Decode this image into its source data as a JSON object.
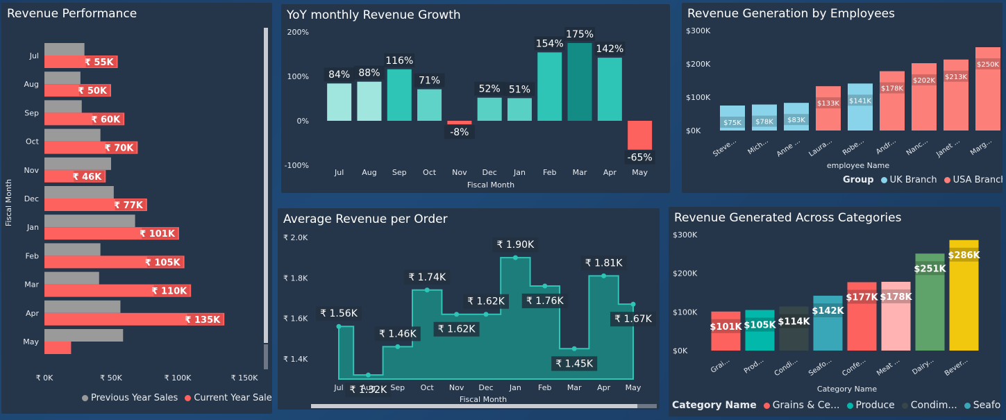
{
  "colors": {
    "prev": "#9a9a9a",
    "curr": "#fd625e",
    "teal_light": "#a0e6df",
    "teal_mid": "#2ec4b6",
    "teal_dark": "#128c84",
    "negative": "#fd625e",
    "uk": "#8ad4eb",
    "usa": "#fd7f7a"
  },
  "revenue_performance": {
    "title": "Revenue Performance",
    "legend": [
      "Previous Year Sales",
      "Current Year  Sales"
    ]
  },
  "yoy": {
    "title": "YoY monthly Revenue Growth"
  },
  "employees": {
    "title": "Revenue Generation by Employees",
    "legend_title": "Group",
    "legend": [
      "UK Branch",
      "USA Branch"
    ]
  },
  "avg_order": {
    "title": "Average Revenue per Order"
  },
  "categories": {
    "title": "Revenue Generated Across Categories",
    "legend_title": "Category Name",
    "legend": [
      "Grains & Ce...",
      "Produce",
      "Condim...",
      "Seafood"
    ]
  },
  "chart_data": [
    {
      "type": "bar",
      "orientation": "horizontal",
      "title": "Revenue Performance",
      "ylabel": "Fiscal Month",
      "categories": [
        "Jul",
        "Aug",
        "Sep",
        "Oct",
        "Nov",
        "Dec",
        "Jan",
        "Feb",
        "Mar",
        "Apr",
        "May"
      ],
      "series": [
        {
          "name": "Previous Year Sales",
          "values": [
            30,
            27,
            28,
            42,
            50,
            52,
            68,
            42,
            41,
            57,
            59
          ]
        },
        {
          "name": "Current Year  Sales",
          "values": [
            55,
            50,
            60,
            70,
            46,
            77,
            101,
            105,
            110,
            135,
            20
          ]
        }
      ],
      "data_labels": [
        "₹ 55K",
        "₹ 50K",
        "₹ 60K",
        "₹ 70K",
        "₹ 46K",
        "₹ 77K",
        "₹ 101K",
        "₹ 105K",
        "₹ 110K",
        "₹ 135K",
        ""
      ],
      "xticks": [
        "₹ 0K",
        "₹ 50K",
        "₹ 100K",
        "₹ 150K"
      ],
      "xlim": [
        0,
        150
      ]
    },
    {
      "type": "bar",
      "title": "YoY monthly Revenue Growth",
      "xlabel": "Fiscal Month",
      "categories": [
        "Jul",
        "Aug",
        "Sep",
        "Oct",
        "Nov",
        "Dec",
        "Jan",
        "Feb",
        "Mar",
        "Apr",
        "May"
      ],
      "values": [
        84,
        88,
        116,
        71,
        -8,
        52,
        51,
        154,
        175,
        142,
        -65
      ],
      "data_labels": [
        "84%",
        "88%",
        "116%",
        "71%",
        "-8%",
        "52%",
        "51%",
        "154%",
        "175%",
        "142%",
        "-65%"
      ],
      "yticks": [
        "200%",
        "100%",
        "0%",
        "-100%"
      ],
      "ylim": [
        -100,
        200
      ]
    },
    {
      "type": "bar",
      "title": "Revenue Generation by Employees",
      "xlabel": "employee Name",
      "categories": [
        "Steve...",
        "Mich...",
        "Anne ...",
        "Laura...",
        "Robe...",
        "Andr...",
        "Nanc...",
        "Janet ...",
        "Marg..."
      ],
      "values": [
        75,
        78,
        83,
        133,
        141,
        178,
        202,
        213,
        250
      ],
      "groups": [
        "UK Branch",
        "UK Branch",
        "UK Branch",
        "USA Branch",
        "UK Branch",
        "USA Branch",
        "USA Branch",
        "USA Branch",
        "USA Branch"
      ],
      "data_labels": [
        "$75K",
        "$78K",
        "$83K",
        "$133K",
        "$141K",
        "$178K",
        "$202K",
        "$213K",
        "$250K"
      ],
      "yticks": [
        "$300K",
        "$200K",
        "$100K",
        "$0K"
      ],
      "ylim": [
        0,
        300
      ]
    },
    {
      "type": "area",
      "title": "Average Revenue per Order",
      "xlabel": "Fiscal Month",
      "categories": [
        "Jul",
        "Aug",
        "Sep",
        "Oct",
        "Nov",
        "Dec",
        "Jan",
        "Feb",
        "Mar",
        "Apr",
        "May"
      ],
      "values": [
        1.56,
        1.32,
        1.46,
        1.74,
        1.62,
        1.62,
        1.9,
        1.76,
        1.45,
        1.81,
        1.67
      ],
      "data_labels": [
        "₹ 1.56K",
        "₹ 1.32K",
        "₹ 1.46K",
        "₹ 1.74K",
        "₹ 1.62K",
        "₹ 1.62K",
        "₹ 1.90K",
        "₹ 1.76K",
        "₹ 1.45K",
        "₹ 1.81K",
        "₹ 1.67K"
      ],
      "yticks": [
        "₹ 2.0K",
        "₹ 1.8K",
        "₹ 1.6K",
        "₹ 1.4K"
      ],
      "ylim": [
        1.3,
        2.0
      ]
    },
    {
      "type": "bar",
      "title": "Revenue Generated Across Categories",
      "xlabel": "Category Name",
      "categories": [
        "Grai...",
        "Prod...",
        "Condi...",
        "Seafo...",
        "Confe...",
        "Meat ...",
        "Dairy...",
        "Bever..."
      ],
      "values": [
        101,
        105,
        114,
        142,
        177,
        178,
        251,
        286
      ],
      "bar_colors": [
        "#fd625e",
        "#01b8aa",
        "#374649",
        "#3aa7b8",
        "#fd625e",
        "#ffb3b3",
        "#5fa36a",
        "#f2c80f"
      ],
      "data_labels": [
        "$101K",
        "$105K",
        "$114K",
        "$142K",
        "$177K",
        "$178K",
        "$251K",
        "$286K"
      ],
      "yticks": [
        "$300K",
        "$200K",
        "$100K",
        "$0K"
      ],
      "ylim": [
        0,
        300
      ]
    }
  ]
}
